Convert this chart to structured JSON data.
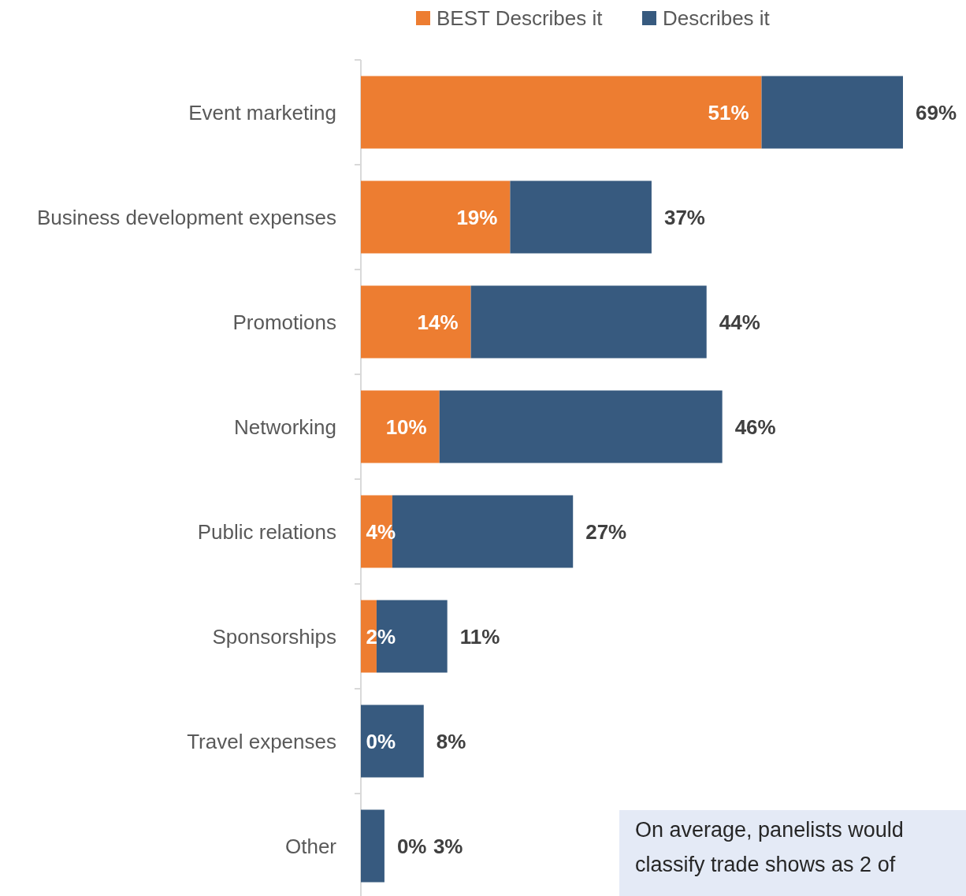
{
  "chart_data": {
    "type": "bar",
    "orientation": "horizontal",
    "stacked": true,
    "legend": "top",
    "categories": [
      "Event marketing",
      "Business development expenses",
      "Promotions",
      "Networking",
      "Public relations",
      "Sponsorships",
      "Travel expenses",
      "Other"
    ],
    "series": [
      {
        "name": "BEST Describes it",
        "color": "#ed7d31",
        "values": [
          51,
          19,
          14,
          10,
          4,
          2,
          0,
          0
        ],
        "value_labels": [
          "51%",
          "19%",
          "14%",
          "10%",
          "4%",
          "2%",
          "0%",
          "0%"
        ]
      },
      {
        "name": "Describes it",
        "color": "#375a7f",
        "values": [
          18,
          18,
          30,
          36,
          23,
          9,
          8,
          3
        ]
      }
    ],
    "totals": [
      "69%",
      "37%",
      "44%",
      "46%",
      "27%",
      "11%",
      "8%",
      "3%"
    ],
    "annotations": [
      "On average, panelists would classify trade shows as 2 of"
    ]
  }
}
